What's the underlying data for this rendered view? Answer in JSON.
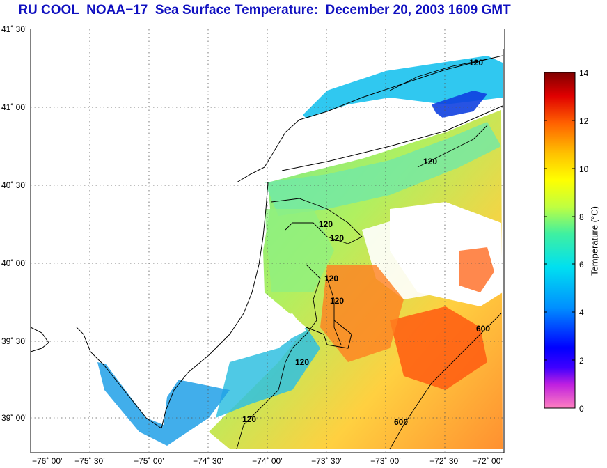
{
  "header": {
    "title": "RU COOL  NOAA−17  Sea Surface Temperature:  December 20, 2003 1609 GMT"
  },
  "axes": {
    "lat_ticks": [
      "41˚ 30’",
      "41˚ 00’",
      "40˚ 30’",
      "40˚ 00’",
      "39˚ 30’",
      "39˚ 00’"
    ],
    "lon_ticks": [
      "−76˚ 00’",
      "−75˚ 30’",
      "−75˚ 00’",
      "−74˚ 30’",
      "−74˚ 00’",
      "−73˚ 30’",
      "−73˚ 00’",
      "−72˚ 30’",
      "−72˚ 00’"
    ]
  },
  "contours": {
    "labels": [
      "120",
      "120",
      "120",
      "120",
      "120",
      "120",
      "120",
      "120",
      "600",
      "600"
    ]
  },
  "colorbar": {
    "title": "Temperature (°C)",
    "ticks": [
      "14",
      "12",
      "10",
      "8",
      "6",
      "4",
      "2",
      "0"
    ],
    "range": [
      0,
      14
    ]
  },
  "colors": {
    "title": "#1010c0",
    "land": "#ffffff",
    "grid": "#555555"
  }
}
